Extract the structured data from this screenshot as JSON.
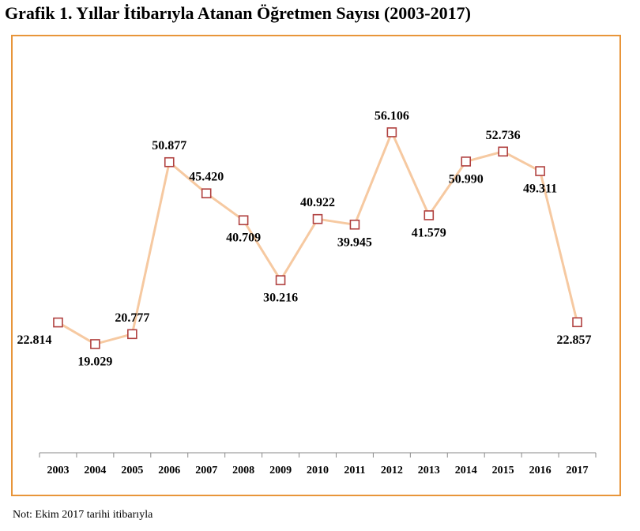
{
  "title": "Grafik 1. Yıllar İtibarıyla Atanan Öğretmen Sayısı (2003-2017)",
  "note": "Not: Ekim 2017 tarihi itibarıyla",
  "colors": {
    "frame": "#e8953a",
    "line": "#f6c9a1",
    "marker": "#b0403f"
  },
  "chart_data": {
    "type": "line",
    "title": "Grafik 1. Yıllar İtibarıyla Atanan Öğretmen Sayısı (2003-2017)",
    "xlabel": "",
    "ylabel": "",
    "grid": false,
    "legend": "none",
    "categories": [
      "2003",
      "2004",
      "2005",
      "2006",
      "2007",
      "2008",
      "2009",
      "2010",
      "2011",
      "2012",
      "2013",
      "2014",
      "2015",
      "2016",
      "2017"
    ],
    "values": [
      22814,
      19029,
      20777,
      50877,
      45420,
      40709,
      30216,
      40922,
      39945,
      56106,
      41579,
      50990,
      52736,
      49311,
      22857
    ],
    "labels": [
      "22.814",
      "19.029",
      "20.777",
      "50.877",
      "45.420",
      "40.709",
      "30.216",
      "40.922",
      "39.945",
      "56.106",
      "41.579",
      "50.990",
      "52.736",
      "49.311",
      "22.857"
    ],
    "label_positions": [
      "below",
      "below",
      "above",
      "above",
      "above",
      "below",
      "below",
      "above",
      "below",
      "above",
      "below",
      "below",
      "above",
      "below",
      "below"
    ],
    "ylim": [
      0,
      70000
    ]
  }
}
